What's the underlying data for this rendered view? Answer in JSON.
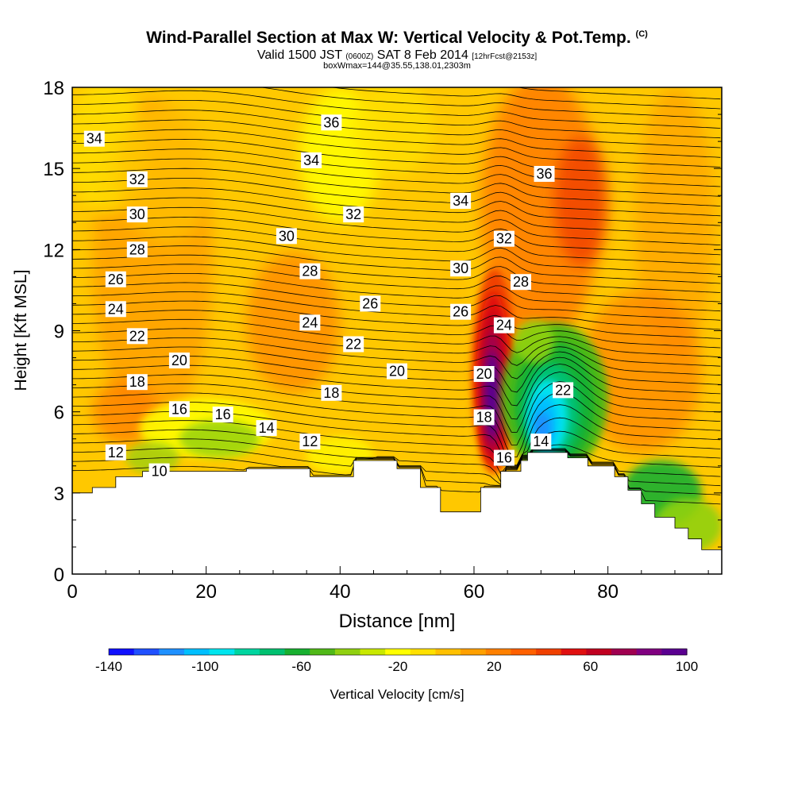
{
  "header": {
    "title_main": "Wind-Parallel Section at Max W: Vertical Velocity & Pot.Temp.",
    "title_c": "(C)",
    "valid_prefix": "Valid 1500 JST",
    "valid_utc": "(0600Z)",
    "valid_date": "SAT 8 Feb 2014",
    "valid_fcst": "[12hrFcst@2153z]",
    "box_info": "boxWmax=144@35.55,138.01,2303m"
  },
  "chart_data": {
    "type": "heatmap",
    "xlabel": "Distance [nm]",
    "ylabel": "Height [Kft MSL]",
    "xlim": [
      0,
      97
    ],
    "ylim": [
      0,
      18
    ],
    "x_ticks": [
      "0",
      "20",
      "40",
      "60",
      "80"
    ],
    "x_tick_values": [
      0,
      20,
      40,
      60,
      80
    ],
    "y_ticks": [
      "0",
      "3",
      "6",
      "9",
      "12",
      "15",
      "18"
    ],
    "y_tick_values": [
      0,
      3,
      6,
      9,
      12,
      15,
      18
    ],
    "terrain_kft": [
      [
        0,
        3.0
      ],
      [
        3,
        3.0
      ],
      [
        3,
        3.2
      ],
      [
        6.5,
        3.2
      ],
      [
        6.5,
        3.6
      ],
      [
        10.5,
        3.6
      ],
      [
        10.5,
        3.8
      ],
      [
        26,
        3.8
      ],
      [
        26,
        3.9
      ],
      [
        35.5,
        3.9
      ],
      [
        35.5,
        3.6
      ],
      [
        42,
        3.6
      ],
      [
        42,
        4.2
      ],
      [
        48.5,
        4.2
      ],
      [
        48.5,
        3.9
      ],
      [
        52,
        3.9
      ],
      [
        52,
        3.2
      ],
      [
        55,
        3.2
      ],
      [
        55,
        2.3
      ],
      [
        61,
        2.3
      ],
      [
        61,
        3.2
      ],
      [
        64,
        3.2
      ],
      [
        64,
        3.8
      ],
      [
        67,
        3.8
      ],
      [
        67,
        4.2
      ],
      [
        68,
        4.2
      ],
      [
        68,
        4.5
      ],
      [
        74,
        4.5
      ],
      [
        74,
        4.3
      ],
      [
        77,
        4.3
      ],
      [
        77,
        4.0
      ],
      [
        81,
        4.0
      ],
      [
        81,
        3.6
      ],
      [
        83,
        3.6
      ],
      [
        83,
        3.1
      ],
      [
        85,
        3.1
      ],
      [
        85,
        2.6
      ],
      [
        87,
        2.6
      ],
      [
        87,
        2.1
      ],
      [
        90,
        2.1
      ],
      [
        90,
        1.7
      ],
      [
        92,
        1.7
      ],
      [
        92,
        1.3
      ],
      [
        94,
        1.3
      ],
      [
        94,
        0.9
      ],
      [
        97,
        0.9
      ]
    ],
    "theta_levels": [
      10,
      12,
      14,
      16,
      18,
      20,
      22,
      24,
      26,
      28,
      30,
      32,
      34,
      36
    ],
    "contour_labels": [
      {
        "text": "34",
        "x": 3.3,
        "y": 16.1
      },
      {
        "text": "36",
        "x": 38.7,
        "y": 16.7
      },
      {
        "text": "34",
        "x": 35.7,
        "y": 15.3
      },
      {
        "text": "36",
        "x": 70.5,
        "y": 14.8
      },
      {
        "text": "32",
        "x": 9.7,
        "y": 14.6
      },
      {
        "text": "34",
        "x": 58,
        "y": 13.8
      },
      {
        "text": "30",
        "x": 9.7,
        "y": 13.3
      },
      {
        "text": "32",
        "x": 42,
        "y": 13.3
      },
      {
        "text": "28",
        "x": 9.7,
        "y": 12.0
      },
      {
        "text": "30",
        "x": 32,
        "y": 12.5
      },
      {
        "text": "32",
        "x": 64.5,
        "y": 12.4
      },
      {
        "text": "28",
        "x": 35.5,
        "y": 11.2
      },
      {
        "text": "30",
        "x": 58,
        "y": 11.3
      },
      {
        "text": "26",
        "x": 6.5,
        "y": 10.9
      },
      {
        "text": "28",
        "x": 67,
        "y": 10.8
      },
      {
        "text": "26",
        "x": 44.5,
        "y": 10.0
      },
      {
        "text": "24",
        "x": 6.5,
        "y": 9.8
      },
      {
        "text": "26",
        "x": 58,
        "y": 9.7
      },
      {
        "text": "24",
        "x": 35.5,
        "y": 9.3
      },
      {
        "text": "24",
        "x": 64.5,
        "y": 9.2
      },
      {
        "text": "22",
        "x": 9.7,
        "y": 8.8
      },
      {
        "text": "22",
        "x": 42,
        "y": 8.5
      },
      {
        "text": "20",
        "x": 16,
        "y": 7.9
      },
      {
        "text": "20",
        "x": 48.5,
        "y": 7.5
      },
      {
        "text": "20",
        "x": 61.5,
        "y": 7.4
      },
      {
        "text": "18",
        "x": 9.7,
        "y": 7.1
      },
      {
        "text": "18",
        "x": 38.7,
        "y": 6.7
      },
      {
        "text": "22",
        "x": 73.3,
        "y": 6.8
      },
      {
        "text": "16",
        "x": 16,
        "y": 6.1
      },
      {
        "text": "16",
        "x": 22.5,
        "y": 5.9
      },
      {
        "text": "18",
        "x": 61.5,
        "y": 5.8
      },
      {
        "text": "14",
        "x": 29,
        "y": 5.4
      },
      {
        "text": "12",
        "x": 35.5,
        "y": 4.9
      },
      {
        "text": "14",
        "x": 70,
        "y": 4.9
      },
      {
        "text": "12",
        "x": 6.5,
        "y": 4.5
      },
      {
        "text": "16",
        "x": 64.5,
        "y": 4.3
      },
      {
        "text": "10",
        "x": 13,
        "y": 3.8
      }
    ],
    "updraft": {
      "center_x": 62.8,
      "center_y": 6.9,
      "max_cm_s": 144
    },
    "downdraft": {
      "center_x": 72.5,
      "center_y": 6.0,
      "min_cm_s": -120
    },
    "colorbar": {
      "label": "Vertical Velocity [cm/s]",
      "ticks": [
        "-140",
        "-100",
        "-60",
        "-20",
        "20",
        "60",
        "100"
      ],
      "colors": [
        "#1010ff",
        "#2050ff",
        "#1e90ff",
        "#00bfff",
        "#00e5ee",
        "#00d5a0",
        "#00c070",
        "#18b030",
        "#50b818",
        "#90d010",
        "#c8e800",
        "#ffff00",
        "#ffe000",
        "#ffc000",
        "#ffa000",
        "#ff8000",
        "#ff6000",
        "#f04000",
        "#e01010",
        "#c00020",
        "#a00050",
        "#800080",
        "#5a0090"
      ]
    }
  }
}
